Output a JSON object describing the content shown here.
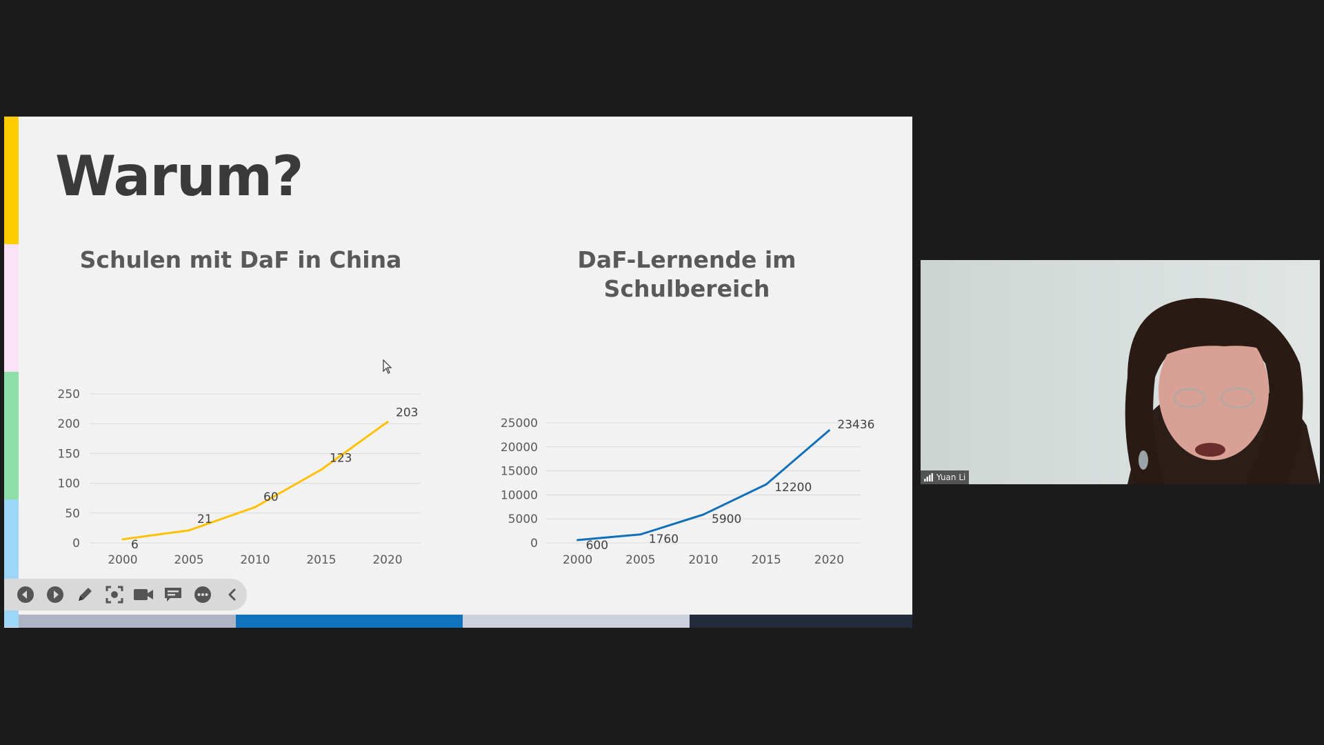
{
  "slide": {
    "title": "Warum?",
    "accent_colors": [
      "#ffcc00",
      "#fde2f6",
      "#8fe0a8",
      "#9dd6f6"
    ],
    "bottom_bar_colors": [
      "#aeb4c4",
      "#0f74bd",
      "#cbd0dc",
      "#232a3b"
    ]
  },
  "chart_data": [
    {
      "type": "line",
      "title": "Schulen mit DaF in China",
      "x": [
        "2000",
        "2005",
        "2010",
        "2015",
        "2020"
      ],
      "series": [
        {
          "values": [
            6,
            21,
            60,
            123,
            203
          ],
          "color": "#ffc000"
        }
      ],
      "data_labels": [
        "6",
        "21",
        "60",
        "123",
        "203"
      ],
      "y_ticks": [
        "0",
        "50",
        "100",
        "150",
        "200",
        "250"
      ],
      "ylim": [
        0,
        250
      ],
      "grid": true
    },
    {
      "type": "line",
      "title": [
        "DaF-Lernende im",
        "Schulbereich"
      ],
      "x": [
        "2000",
        "2005",
        "2010",
        "2015",
        "2020"
      ],
      "series": [
        {
          "values": [
            600,
            1760,
            5900,
            12200,
            23436
          ],
          "color": "#0f6fb8"
        }
      ],
      "data_labels": [
        "600",
        "1760",
        "5900",
        "12200",
        "23436"
      ],
      "y_ticks": [
        "0",
        "5000",
        "10000",
        "15000",
        "20000",
        "25000"
      ],
      "ylim": [
        0,
        25000
      ],
      "grid": true
    }
  ],
  "toolbar": {
    "buttons": [
      "previous-slide-icon",
      "next-slide-icon",
      "pen-icon",
      "focus-icon",
      "camera-icon",
      "subtitles-icon",
      "more-icon",
      "collapse-chevron-icon"
    ]
  },
  "participant": {
    "name": "Yuan Li",
    "signal_icon": "signal-bars-icon"
  }
}
